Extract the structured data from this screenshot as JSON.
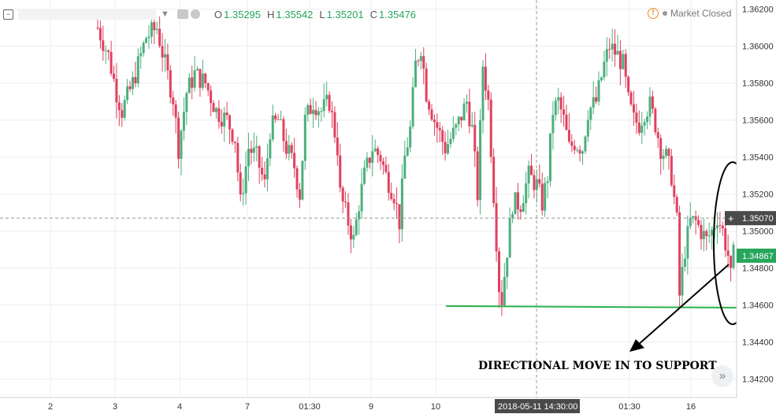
{
  "legend": {
    "open_label": "O",
    "open_value": "1.35295",
    "high_label": "H",
    "high_value": "1.35542",
    "low_label": "L",
    "low_value": "1.35201",
    "close_label": "C",
    "close_value": "1.35476"
  },
  "status": {
    "text": "Market Closed"
  },
  "annotation": {
    "text": "DIRECTIONAL MOVE IN TO SUPPORT"
  },
  "crosshair": {
    "price_label": "1.35070",
    "time_label": "2018-05-11 14:30:00"
  },
  "last_price": {
    "label": "1.34867",
    "color": "#26a65b"
  },
  "colors": {
    "up": "#4caf7d",
    "down": "#e0415e",
    "support": "#2bb34a",
    "annotation": "#000000"
  },
  "chart_data": {
    "type": "candlestick",
    "ylim": [
      1.341,
      1.3625
    ],
    "y_ticks": [
      "1.36200",
      "1.36000",
      "1.35800",
      "1.35600",
      "1.35400",
      "1.35200",
      "1.35000",
      "1.34800",
      "1.34600",
      "1.34400",
      "1.34200"
    ],
    "x_ticks": [
      "2",
      "3",
      "4",
      "7",
      "01:30",
      "9",
      "10",
      "01:30",
      "16"
    ],
    "support_level": 1.3459,
    "anchors": [
      [
        0,
        1.361
      ],
      [
        4,
        1.3595
      ],
      [
        7,
        1.3575
      ],
      [
        9,
        1.3565
      ],
      [
        13,
        1.358
      ],
      [
        18,
        1.3605
      ],
      [
        22,
        1.361
      ],
      [
        25,
        1.359
      ],
      [
        28,
        1.3572
      ],
      [
        30,
        1.3545
      ],
      [
        33,
        1.3575
      ],
      [
        36,
        1.3585
      ],
      [
        40,
        1.358
      ],
      [
        44,
        1.3565
      ],
      [
        48,
        1.356
      ],
      [
        51,
        1.355
      ],
      [
        53,
        1.3515
      ],
      [
        56,
        1.3545
      ],
      [
        59,
        1.354
      ],
      [
        62,
        1.3525
      ],
      [
        64,
        1.3555
      ],
      [
        67,
        1.356
      ],
      [
        70,
        1.3545
      ],
      [
        73,
        1.3535
      ],
      [
        75,
        1.352
      ],
      [
        77,
        1.356
      ],
      [
        80,
        1.357
      ],
      [
        83,
        1.3565
      ],
      [
        86,
        1.357
      ],
      [
        89,
        1.3545
      ],
      [
        90,
        1.352
      ],
      [
        93,
        1.3505
      ],
      [
        95,
        1.3495
      ],
      [
        97,
        1.3515
      ],
      [
        99,
        1.353
      ],
      [
        102,
        1.3545
      ],
      [
        105,
        1.354
      ],
      [
        107,
        1.353
      ],
      [
        110,
        1.352
      ],
      [
        112,
        1.3505
      ],
      [
        114,
        1.354
      ],
      [
        116,
        1.3555
      ],
      [
        118,
        1.359
      ],
      [
        120,
        1.36
      ],
      [
        122,
        1.3575
      ],
      [
        125,
        1.356
      ],
      [
        129,
        1.3545
      ],
      [
        133,
        1.3555
      ],
      [
        137,
        1.357
      ],
      [
        139,
        1.3555
      ],
      [
        141,
        1.352
      ],
      [
        143,
        1.359
      ],
      [
        145,
        1.357
      ],
      [
        147,
        1.352
      ],
      [
        149,
        1.347
      ],
      [
        150,
        1.3463
      ],
      [
        152,
        1.349
      ],
      [
        154,
        1.3515
      ],
      [
        157,
        1.3515
      ],
      [
        160,
        1.353
      ],
      [
        163,
        1.3525
      ],
      [
        165,
        1.3515
      ],
      [
        167,
        1.353
      ],
      [
        169,
        1.3565
      ],
      [
        171,
        1.357
      ],
      [
        173,
        1.356
      ],
      [
        175,
        1.3545
      ],
      [
        177,
        1.3548
      ],
      [
        180,
        1.3545
      ],
      [
        182,
        1.3565
      ],
      [
        185,
        1.357
      ],
      [
        188,
        1.359
      ],
      [
        190,
        1.36
      ],
      [
        193,
        1.3595
      ],
      [
        195,
        1.359
      ],
      [
        197,
        1.357
      ],
      [
        199,
        1.356
      ],
      [
        201,
        1.3558
      ],
      [
        203,
        1.3565
      ],
      [
        205,
        1.3568
      ],
      [
        207,
        1.3558
      ],
      [
        209,
        1.3545
      ],
      [
        211,
        1.354
      ],
      [
        213,
        1.353
      ],
      [
        215,
        1.3505
      ],
      [
        216,
        1.3465
      ],
      [
        218,
        1.349
      ],
      [
        220,
        1.3505
      ],
      [
        222,
        1.3505
      ],
      [
        224,
        1.35
      ],
      [
        226,
        1.3495
      ],
      [
        228,
        1.35
      ],
      [
        230,
        1.3508
      ],
      [
        232,
        1.35
      ],
      [
        234,
        1.3487
      ],
      [
        235,
        1.3475
      ],
      [
        236,
        1.3487
      ]
    ]
  }
}
